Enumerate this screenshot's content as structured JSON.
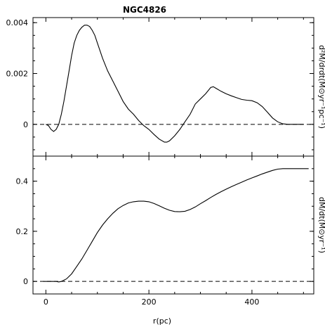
{
  "chart_data": {
    "title": "NGC4826",
    "xlabel": "r(pc)",
    "xlim": [
      -25,
      520
    ],
    "xticks": [
      0,
      200,
      400
    ],
    "xtick_labels": [
      "0",
      "200",
      "400"
    ],
    "panels": [
      {
        "type": "line",
        "ylabel": "d²M/drdt(M⊙yr⁻¹pc⁻¹)",
        "ylim": [
          -0.00125,
          0.0042
        ],
        "yticks": [
          0,
          0.002,
          0.004
        ],
        "ytick_labels": [
          "0",
          "0.002",
          "0.004"
        ],
        "zero_line": true,
        "series": [
          {
            "x": [
              0,
              5,
              10,
              15,
              20,
              25,
              30,
              35,
              40,
              45,
              50,
              55,
              60,
              65,
              70,
              75,
              80,
              85,
              90,
              95,
              100,
              110,
              120,
              130,
              140,
              150,
              160,
              170,
              180,
              190,
              200,
              210,
              220,
              230,
              235,
              240,
              250,
              260,
              270,
              280,
              290,
              300,
              310,
              320,
              325,
              330,
              340,
              350,
              360,
              370,
              380,
              390,
              400,
              410,
              420,
              430,
              440,
              450,
              460,
              470,
              480,
              490,
              500
            ],
            "y": [
              0,
              -5e-05,
              -0.0002,
              -0.00028,
              -0.0002,
              0,
              0.0004,
              0.0009,
              0.0015,
              0.0021,
              0.0027,
              0.0032,
              0.0035,
              0.0037,
              0.00382,
              0.0039,
              0.0039,
              0.00385,
              0.0037,
              0.0035,
              0.0032,
              0.0026,
              0.0021,
              0.0017,
              0.0013,
              0.0009,
              0.0006,
              0.0004,
              0.00015,
              -5e-05,
              -0.0002,
              -0.0004,
              -0.00058,
              -0.0007,
              -0.0007,
              -0.00065,
              -0.00045,
              -0.0002,
              0.0001,
              0.0004,
              0.0008,
              0.001,
              0.0012,
              0.00145,
              0.00148,
              0.00142,
              0.0013,
              0.0012,
              0.00112,
              0.00105,
              0.00098,
              0.00095,
              0.00093,
              0.00085,
              0.0007,
              0.00048,
              0.00025,
              0.0001,
              2e-05,
              0,
              0,
              0,
              0
            ]
          }
        ]
      },
      {
        "type": "line",
        "ylabel": "dM/dt(M⊙yr⁻¹)",
        "ylim": [
          -0.05,
          0.5
        ],
        "yticks": [
          0,
          0.2,
          0.4
        ],
        "ytick_labels": [
          "0",
          "0.2",
          "0.4"
        ],
        "zero_line": true,
        "series": [
          {
            "x": [
              -5,
              0,
              10,
              20,
              25,
              30,
              40,
              50,
              60,
              70,
              80,
              90,
              100,
              110,
              120,
              130,
              140,
              150,
              160,
              170,
              180,
              190,
              200,
              210,
              220,
              230,
              240,
              250,
              260,
              270,
              280,
              290,
              300,
              310,
              320,
              330,
              340,
              350,
              360,
              370,
              380,
              390,
              400,
              410,
              420,
              430,
              440,
              450,
              460,
              470,
              480,
              490,
              500,
              510
            ],
            "y": [
              0,
              0,
              0,
              0,
              -0.002,
              0,
              0.01,
              0.03,
              0.06,
              0.09,
              0.125,
              0.16,
              0.195,
              0.225,
              0.25,
              0.272,
              0.29,
              0.303,
              0.313,
              0.318,
              0.32,
              0.32,
              0.318,
              0.311,
              0.302,
              0.292,
              0.284,
              0.279,
              0.278,
              0.28,
              0.287,
              0.297,
              0.31,
              0.322,
              0.335,
              0.347,
              0.358,
              0.368,
              0.378,
              0.387,
              0.396,
              0.405,
              0.413,
              0.421,
              0.429,
              0.436,
              0.443,
              0.448,
              0.45,
              0.45,
              0.45,
              0.45,
              0.45,
              0.45
            ]
          }
        ]
      }
    ]
  }
}
